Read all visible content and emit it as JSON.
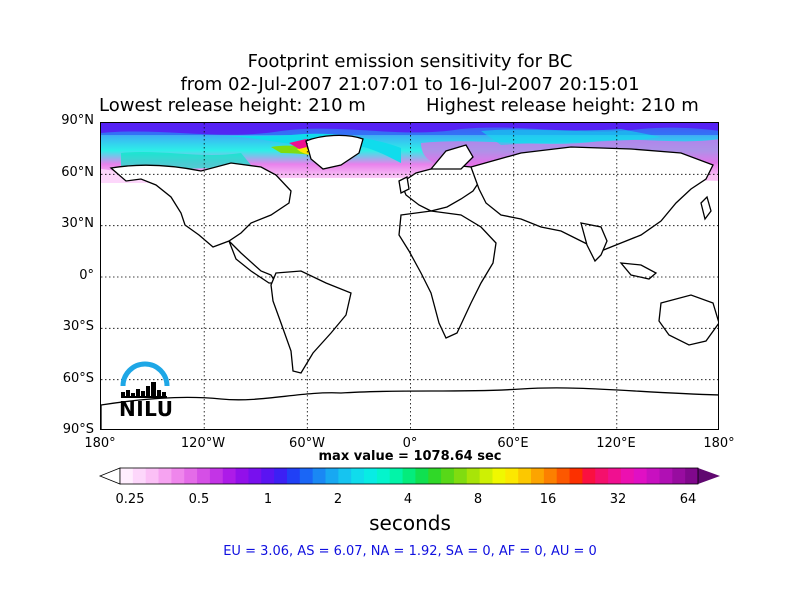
{
  "title": {
    "line1": "Footprint emission sensitivity for BC",
    "line2": "from 02-Jul-2007 21:07:01 to 16-Jul-2007 20:15:01",
    "release_low": "Lowest release height: 210 m",
    "release_high": "Highest release height: 210 m"
  },
  "map": {
    "projection": "equirectangular",
    "lat_ticks": [
      "90°N",
      "60°N",
      "30°N",
      "0°",
      "30°S",
      "60°S",
      "90°S"
    ],
    "lon_ticks": [
      "180°",
      "120°W",
      "60°W",
      "0°",
      "60°E",
      "120°E",
      "180°"
    ],
    "grid": "dotted",
    "land_color": "#ffffff",
    "sensitivity_region": "Arctic, north of ~60°N, maximum over Greenland"
  },
  "max_value": "max value = 1078.64 sec",
  "colorbar": {
    "ticks": [
      "0.25",
      "0.5",
      "1",
      "2",
      "4",
      "8",
      "16",
      "32",
      "64"
    ],
    "units": "seconds",
    "colors": [
      "#ffeefe",
      "#fdd7fb",
      "#fbc0f6",
      "#f6a3f1",
      "#ef86ec",
      "#e46be8",
      "#d54fe6",
      "#c334e6",
      "#ad1be8",
      "#9210ea",
      "#7810ee",
      "#5a14f2",
      "#3c20f4",
      "#2040f6",
      "#1a66f6",
      "#1a88f4",
      "#18a8f2",
      "#16c4f0",
      "#10dcec",
      "#08ece4",
      "#04f4cc",
      "#02f4a8",
      "#04ec7c",
      "#10e050",
      "#30d828",
      "#58d818",
      "#80dc10",
      "#a8e408",
      "#cef004",
      "#f0f800",
      "#fce800",
      "#fcc800",
      "#fca400",
      "#fc8000",
      "#fc5800",
      "#fc3000",
      "#fa1040",
      "#f4106c",
      "#f01090",
      "#ec10b0",
      "#e010c4",
      "#c810c0",
      "#b010b4",
      "#980ca0",
      "#80088c"
    ],
    "end_color": "#600870"
  },
  "nilu_logo": {
    "text": "NILU",
    "accent_color": "#1ea7e6"
  },
  "regions_text": "EU = 3.06,  AS = 6.07,  NA = 1.92,  SA = 0,  AF = 0,  AU = 0",
  "regions_color": "#1010e0"
}
